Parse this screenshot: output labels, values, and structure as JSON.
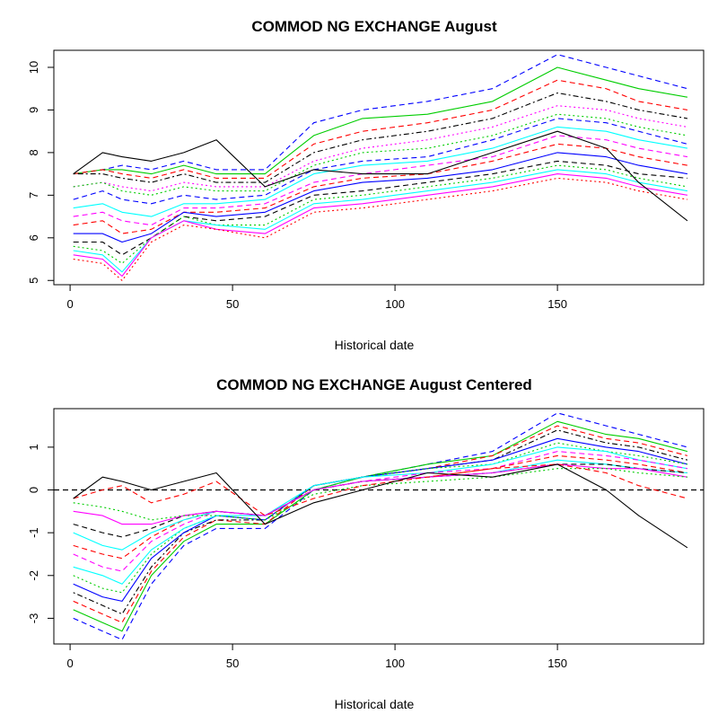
{
  "chart_data": [
    {
      "type": "line",
      "title": "COMMOD NG EXCHANGE August",
      "xlabel": "Historical date",
      "ylabel": "",
      "xlim": [
        -5,
        195
      ],
      "ylim": [
        4.9,
        10.4
      ],
      "xticks": [
        0,
        50,
        100,
        150
      ],
      "yticks": [
        5,
        6,
        7,
        8,
        9,
        10
      ],
      "x": [
        1,
        10,
        16,
        25,
        35,
        45,
        60,
        75,
        90,
        110,
        130,
        150,
        165,
        175,
        190
      ],
      "series": [
        {
          "color": "#0000FF",
          "dash": "dashed",
          "values": [
            7.5,
            7.6,
            7.7,
            7.6,
            7.8,
            7.6,
            7.6,
            8.7,
            9.0,
            9.2,
            9.5,
            10.3,
            10.0,
            9.8,
            9.5
          ]
        },
        {
          "color": "#00CD00",
          "dash": "solid",
          "values": [
            7.5,
            7.6,
            7.6,
            7.5,
            7.7,
            7.5,
            7.5,
            8.4,
            8.8,
            8.9,
            9.2,
            10.0,
            9.7,
            9.5,
            9.3
          ]
        },
        {
          "color": "#FF0000",
          "dash": "dashed",
          "values": [
            7.5,
            7.6,
            7.5,
            7.4,
            7.6,
            7.4,
            7.4,
            8.2,
            8.5,
            8.7,
            9.0,
            9.7,
            9.5,
            9.2,
            9.0
          ]
        },
        {
          "color": "#000000",
          "dash": "dotdash",
          "values": [
            7.5,
            7.5,
            7.4,
            7.3,
            7.5,
            7.3,
            7.3,
            8.0,
            8.3,
            8.5,
            8.8,
            9.4,
            9.2,
            9.0,
            8.8
          ]
        },
        {
          "color": "#FF00FF",
          "dash": "dotted",
          "values": [
            7.2,
            7.3,
            7.2,
            7.1,
            7.3,
            7.2,
            7.2,
            7.8,
            8.1,
            8.3,
            8.6,
            9.1,
            9.0,
            8.8,
            8.6
          ]
        },
        {
          "color": "#00CD00",
          "dash": "dotted",
          "values": [
            7.2,
            7.3,
            7.1,
            7.0,
            7.2,
            7.1,
            7.1,
            7.7,
            8.0,
            8.1,
            8.4,
            8.9,
            8.8,
            8.6,
            8.4
          ]
        },
        {
          "color": "#0000FF",
          "dash": "dashed",
          "values": [
            6.9,
            7.1,
            6.9,
            6.8,
            7.0,
            6.9,
            7.0,
            7.6,
            7.8,
            7.9,
            8.3,
            8.8,
            8.7,
            8.5,
            8.2
          ]
        },
        {
          "color": "#00FFFF",
          "dash": "solid",
          "values": [
            6.7,
            6.8,
            6.6,
            6.5,
            6.8,
            6.8,
            6.9,
            7.5,
            7.7,
            7.8,
            8.1,
            8.6,
            8.5,
            8.3,
            8.1
          ]
        },
        {
          "color": "#FF00FF",
          "dash": "dashed",
          "values": [
            6.5,
            6.6,
            6.4,
            6.3,
            6.7,
            6.7,
            6.8,
            7.3,
            7.5,
            7.7,
            7.9,
            8.4,
            8.3,
            8.1,
            7.9
          ]
        },
        {
          "color": "#FF0000",
          "dash": "dashed",
          "values": [
            6.3,
            6.4,
            6.1,
            6.2,
            6.6,
            6.6,
            6.7,
            7.2,
            7.4,
            7.5,
            7.8,
            8.2,
            8.1,
            7.9,
            7.7
          ]
        },
        {
          "color": "#0000FF",
          "dash": "solid",
          "values": [
            6.1,
            6.1,
            5.9,
            6.1,
            6.6,
            6.5,
            6.6,
            7.1,
            7.3,
            7.4,
            7.6,
            8.0,
            7.9,
            7.7,
            7.5
          ]
        },
        {
          "color": "#000000",
          "dash": "dashed",
          "values": [
            5.9,
            5.9,
            5.6,
            6.0,
            6.5,
            6.4,
            6.5,
            7.0,
            7.1,
            7.3,
            7.5,
            7.8,
            7.7,
            7.5,
            7.4
          ]
        },
        {
          "color": "#00CD00",
          "dash": "dotted",
          "values": [
            5.8,
            5.7,
            5.4,
            6.0,
            6.5,
            6.3,
            6.3,
            6.9,
            7.0,
            7.2,
            7.4,
            7.7,
            7.6,
            7.4,
            7.2
          ]
        },
        {
          "color": "#00FFFF",
          "dash": "solid",
          "values": [
            5.7,
            5.6,
            5.2,
            6.0,
            6.4,
            6.3,
            6.2,
            6.8,
            6.9,
            7.1,
            7.3,
            7.6,
            7.5,
            7.3,
            7.1
          ]
        },
        {
          "color": "#FF00FF",
          "dash": "solid",
          "values": [
            5.6,
            5.5,
            5.1,
            6.0,
            6.4,
            6.2,
            6.1,
            6.7,
            6.8,
            7.0,
            7.2,
            7.5,
            7.4,
            7.2,
            7.0
          ]
        },
        {
          "color": "#FF0000",
          "dash": "dotted",
          "values": [
            5.5,
            5.4,
            5.0,
            5.9,
            6.3,
            6.2,
            6.0,
            6.6,
            6.7,
            6.9,
            7.1,
            7.4,
            7.3,
            7.1,
            6.9
          ]
        },
        {
          "color": "#000000",
          "dash": "solid",
          "values": [
            7.5,
            8.0,
            7.9,
            7.8,
            8.0,
            8.3,
            7.2,
            7.6,
            7.5,
            7.5,
            8.0,
            8.5,
            8.1,
            7.3,
            6.4
          ]
        }
      ]
    },
    {
      "type": "line",
      "title": "COMMOD NG EXCHANGE August Centered",
      "xlabel": "Historical date",
      "ylabel": "",
      "xlim": [
        -5,
        195
      ],
      "ylim": [
        -3.6,
        1.9
      ],
      "xticks": [
        0,
        50,
        100,
        150
      ],
      "yticks": [
        -3,
        -2,
        -1,
        0,
        1
      ],
      "reference_line": {
        "y": 0,
        "style": "dashed"
      },
      "x": [
        1,
        10,
        16,
        25,
        35,
        45,
        60,
        75,
        90,
        110,
        130,
        150,
        165,
        175,
        190
      ],
      "series": [
        {
          "color": "#0000FF",
          "dash": "dashed",
          "values": [
            -3.0,
            -3.3,
            -3.5,
            -2.2,
            -1.3,
            -0.9,
            -0.9,
            0.0,
            0.3,
            0.6,
            0.9,
            1.8,
            1.5,
            1.3,
            1.0
          ]
        },
        {
          "color": "#00CD00",
          "dash": "solid",
          "values": [
            -2.8,
            -3.1,
            -3.3,
            -2.0,
            -1.2,
            -0.8,
            -0.8,
            0.0,
            0.3,
            0.6,
            0.8,
            1.6,
            1.3,
            1.2,
            0.9
          ]
        },
        {
          "color": "#FF0000",
          "dash": "dashed",
          "values": [
            -2.6,
            -2.9,
            -3.1,
            -1.9,
            -1.1,
            -0.7,
            -0.8,
            0.1,
            0.3,
            0.5,
            0.8,
            1.5,
            1.2,
            1.1,
            0.8
          ]
        },
        {
          "color": "#000000",
          "dash": "dotdash",
          "values": [
            -2.4,
            -2.7,
            -2.9,
            -1.8,
            -1.0,
            -0.7,
            -0.7,
            0.1,
            0.3,
            0.5,
            0.7,
            1.4,
            1.1,
            1.0,
            0.7
          ]
        },
        {
          "color": "#0000FF",
          "dash": "solid",
          "values": [
            -2.2,
            -2.5,
            -2.6,
            -1.6,
            -1.0,
            -0.6,
            -0.7,
            0.1,
            0.3,
            0.5,
            0.7,
            1.2,
            1.0,
            0.9,
            0.6
          ]
        },
        {
          "color": "#00CD00",
          "dash": "dotted",
          "values": [
            -2.0,
            -2.3,
            -2.4,
            -1.5,
            -0.9,
            -0.6,
            -0.7,
            0.1,
            0.3,
            0.5,
            0.6,
            1.1,
            0.9,
            0.8,
            0.6
          ]
        },
        {
          "color": "#00FFFF",
          "dash": "solid",
          "values": [
            -1.8,
            -2.0,
            -2.2,
            -1.4,
            -0.9,
            -0.6,
            -0.6,
            0.1,
            0.3,
            0.4,
            0.6,
            1.0,
            0.9,
            0.7,
            0.5
          ]
        },
        {
          "color": "#FF00FF",
          "dash": "dashed",
          "values": [
            -1.5,
            -1.8,
            -1.9,
            -1.2,
            -0.8,
            -0.5,
            -0.6,
            0.0,
            0.2,
            0.4,
            0.5,
            0.9,
            0.8,
            0.7,
            0.5
          ]
        },
        {
          "color": "#FF0000",
          "dash": "dashed",
          "values": [
            -1.3,
            -1.5,
            -1.6,
            -1.1,
            -0.7,
            -0.5,
            -0.6,
            0.0,
            0.2,
            0.3,
            0.5,
            0.8,
            0.7,
            0.6,
            0.4
          ]
        },
        {
          "color": "#00FFFF",
          "dash": "solid",
          "values": [
            -1.0,
            -1.3,
            -1.4,
            -1.0,
            -0.7,
            -0.5,
            -0.6,
            0.0,
            0.2,
            0.3,
            0.4,
            0.7,
            0.6,
            0.5,
            0.4
          ]
        },
        {
          "color": "#000000",
          "dash": "dashed",
          "values": [
            -0.8,
            -1.0,
            -1.1,
            -0.9,
            -0.6,
            -0.5,
            -0.6,
            0.0,
            0.2,
            0.3,
            0.4,
            0.6,
            0.6,
            0.5,
            0.4
          ]
        },
        {
          "color": "#FF00FF",
          "dash": "solid",
          "values": [
            -0.5,
            -0.6,
            -0.8,
            -0.8,
            -0.6,
            -0.5,
            -0.6,
            0.0,
            0.2,
            0.3,
            0.4,
            0.6,
            0.5,
            0.5,
            0.3
          ]
        },
        {
          "color": "#00CD00",
          "dash": "dotted",
          "values": [
            -0.3,
            -0.4,
            -0.5,
            -0.7,
            -0.6,
            -0.6,
            -0.7,
            -0.1,
            0.1,
            0.2,
            0.3,
            0.5,
            0.5,
            0.4,
            0.3
          ]
        },
        {
          "color": "#FF0000",
          "dash": "dashed",
          "values": [
            -0.2,
            0.0,
            0.1,
            -0.3,
            -0.1,
            0.2,
            -0.6,
            -0.2,
            0.1,
            0.3,
            0.5,
            0.6,
            0.4,
            0.1,
            -0.2
          ]
        },
        {
          "color": "#000000",
          "dash": "solid",
          "values": [
            -0.2,
            0.3,
            0.2,
            0.0,
            0.2,
            0.4,
            -0.8,
            -0.3,
            0.0,
            0.4,
            0.3,
            0.6,
            0.0,
            -0.6,
            -1.35
          ]
        }
      ]
    }
  ]
}
